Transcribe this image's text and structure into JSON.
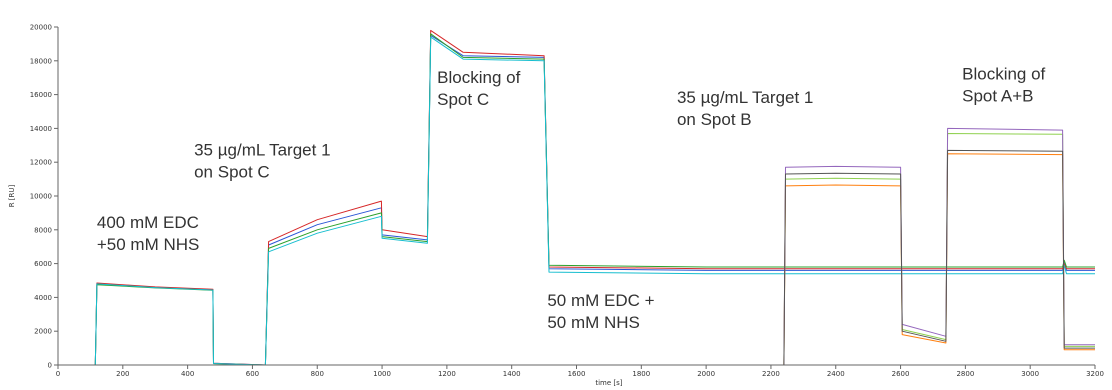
{
  "chart_data": {
    "type": "line",
    "title": "",
    "xlabel": "time [s]",
    "ylabel": "R [RU]",
    "xlim": [
      0,
      3200
    ],
    "ylim": [
      0,
      20000
    ],
    "grid": false,
    "x_ticks": [
      0,
      200,
      400,
      600,
      800,
      1000,
      1200,
      1400,
      1600,
      1800,
      2000,
      2200,
      2400,
      2600,
      2800,
      3000,
      3200
    ],
    "y_ticks": [
      0,
      2000,
      4000,
      6000,
      8000,
      10000,
      12000,
      14000,
      16000,
      18000,
      20000
    ],
    "annotations": [
      {
        "lines": [
          "400 mM EDC",
          "+50 mM NHS"
        ],
        "x": 120,
        "y": 8100
      },
      {
        "lines": [
          "35 µg/mL Target 1",
          "on Spot C"
        ],
        "x": 420,
        "y": 12400
      },
      {
        "lines": [
          "Blocking of",
          "Spot C"
        ],
        "x": 1170,
        "y": 16700
      },
      {
        "lines": [
          "50 mM EDC +",
          "50 mM NHS"
        ],
        "x": 1510,
        "y": 3500
      },
      {
        "lines": [
          "35 µg/mL Target 1",
          "on Spot B"
        ],
        "x": 1910,
        "y": 15500
      },
      {
        "lines": [
          "Blocking of",
          "Spot A+B"
        ],
        "x": 2790,
        "y": 16900
      }
    ],
    "series": [
      {
        "color": "#2b57d6",
        "points": [
          [
            0,
            0
          ],
          [
            115,
            0
          ],
          [
            120,
            4800
          ],
          [
            300,
            4600
          ],
          [
            478,
            4450
          ],
          [
            480,
            100
          ],
          [
            640,
            0
          ],
          [
            650,
            7100
          ],
          [
            800,
            8300
          ],
          [
            998,
            9300
          ],
          [
            1000,
            7700
          ],
          [
            1140,
            7400
          ],
          [
            1150,
            19500
          ],
          [
            1250,
            18300
          ],
          [
            1500,
            18200
          ],
          [
            1515,
            5700
          ],
          [
            2000,
            5600
          ],
          [
            2235,
            5600
          ],
          [
            2240,
            5600
          ],
          [
            2600,
            5600
          ],
          [
            2740,
            5600
          ],
          [
            2745,
            5600
          ],
          [
            3100,
            5600
          ],
          [
            3105,
            6100
          ],
          [
            3112,
            5600
          ],
          [
            3200,
            5600
          ]
        ]
      },
      {
        "color": "#d62728",
        "points": [
          [
            0,
            0
          ],
          [
            115,
            0
          ],
          [
            120,
            4850
          ],
          [
            300,
            4620
          ],
          [
            478,
            4480
          ],
          [
            480,
            100
          ],
          [
            640,
            0
          ],
          [
            650,
            7300
          ],
          [
            800,
            8600
          ],
          [
            998,
            9700
          ],
          [
            1000,
            8000
          ],
          [
            1140,
            7600
          ],
          [
            1150,
            19800
          ],
          [
            1250,
            18500
          ],
          [
            1500,
            18300
          ],
          [
            1515,
            5800
          ],
          [
            2000,
            5700
          ],
          [
            2240,
            5700
          ],
          [
            3100,
            5700
          ],
          [
            3105,
            6000
          ],
          [
            3112,
            5700
          ],
          [
            3200,
            5700
          ]
        ]
      },
      {
        "color": "#2ca02c",
        "points": [
          [
            0,
            0
          ],
          [
            115,
            0
          ],
          [
            120,
            4750
          ],
          [
            300,
            4560
          ],
          [
            478,
            4420
          ],
          [
            480,
            80
          ],
          [
            640,
            0
          ],
          [
            650,
            6900
          ],
          [
            800,
            8000
          ],
          [
            998,
            9000
          ],
          [
            1000,
            7600
          ],
          [
            1140,
            7300
          ],
          [
            1150,
            19600
          ],
          [
            1250,
            18200
          ],
          [
            1500,
            18100
          ],
          [
            1515,
            5900
          ],
          [
            2000,
            5800
          ],
          [
            2240,
            5800
          ],
          [
            3100,
            5800
          ],
          [
            3105,
            6200
          ],
          [
            3112,
            5800
          ],
          [
            3200,
            5800
          ]
        ]
      },
      {
        "color": "#17becf",
        "points": [
          [
            0,
            0
          ],
          [
            115,
            0
          ],
          [
            120,
            4800
          ],
          [
            300,
            4580
          ],
          [
            478,
            4440
          ],
          [
            480,
            90
          ],
          [
            640,
            0
          ],
          [
            650,
            6700
          ],
          [
            800,
            7800
          ],
          [
            998,
            8800
          ],
          [
            1000,
            7500
          ],
          [
            1140,
            7200
          ],
          [
            1150,
            19400
          ],
          [
            1250,
            18100
          ],
          [
            1500,
            18000
          ],
          [
            1515,
            5500
          ],
          [
            2000,
            5400
          ],
          [
            2240,
            5400
          ],
          [
            3100,
            5400
          ],
          [
            3105,
            5900
          ],
          [
            3112,
            5400
          ],
          [
            3200,
            5400
          ]
        ]
      },
      {
        "color": "#8fd14f",
        "points": [
          [
            0,
            0
          ],
          [
            2240,
            0
          ],
          [
            2245,
            11000
          ],
          [
            2400,
            11050
          ],
          [
            2600,
            11000
          ],
          [
            2605,
            2100
          ],
          [
            2740,
            1500
          ],
          [
            2745,
            13700
          ],
          [
            3100,
            13650
          ],
          [
            3105,
            1100
          ],
          [
            3200,
            1100
          ]
        ]
      },
      {
        "color": "#ff7f0e",
        "points": [
          [
            0,
            0
          ],
          [
            2240,
            0
          ],
          [
            2245,
            10600
          ],
          [
            2400,
            10650
          ],
          [
            2600,
            10600
          ],
          [
            2605,
            1800
          ],
          [
            2740,
            1300
          ],
          [
            2745,
            12500
          ],
          [
            3100,
            12450
          ],
          [
            3105,
            900
          ],
          [
            3200,
            900
          ]
        ]
      },
      {
        "color": "#9467bd",
        "points": [
          [
            0,
            0
          ],
          [
            2240,
            0
          ],
          [
            2245,
            11700
          ],
          [
            2400,
            11750
          ],
          [
            2600,
            11700
          ],
          [
            2605,
            2400
          ],
          [
            2740,
            1700
          ],
          [
            2745,
            14000
          ],
          [
            3100,
            13900
          ],
          [
            3105,
            1200
          ],
          [
            3200,
            1200
          ]
        ]
      },
      {
        "color": "#555555",
        "points": [
          [
            0,
            0
          ],
          [
            2240,
            0
          ],
          [
            2245,
            11300
          ],
          [
            2400,
            11350
          ],
          [
            2600,
            11300
          ],
          [
            2605,
            2000
          ],
          [
            2740,
            1400
          ],
          [
            2745,
            12700
          ],
          [
            3100,
            12650
          ],
          [
            3105,
            1000
          ],
          [
            3200,
            1000
          ]
        ]
      }
    ]
  }
}
